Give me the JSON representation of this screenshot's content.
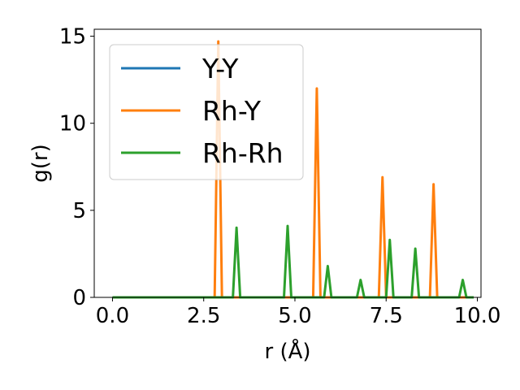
{
  "chart_data": {
    "type": "line",
    "title": "",
    "xlabel": "r (Å)",
    "ylabel": "g(r)",
    "xlim": [
      -0.5,
      10.1
    ],
    "ylim": [
      0,
      15.4
    ],
    "xticks": [
      0.0,
      2.5,
      5.0,
      7.5,
      10.0
    ],
    "xtick_labels": [
      "0.0",
      "2.5",
      "5.0",
      "7.5",
      "10.0"
    ],
    "yticks": [
      0,
      5,
      10,
      15
    ],
    "ytick_labels": [
      "0",
      "5",
      "10",
      "15"
    ],
    "grid": false,
    "legend_position": "top-left",
    "series": [
      {
        "name": "Y-Y",
        "color": "#1f77b4",
        "x": [
          0.0,
          9.9
        ],
        "y": [
          0,
          0
        ]
      },
      {
        "name": "Rh-Y",
        "color": "#ff7f0e",
        "x": [
          0.0,
          2.8,
          2.9,
          3.0,
          5.5,
          5.6,
          5.7,
          7.3,
          7.4,
          7.5,
          8.7,
          8.8,
          8.9,
          9.9
        ],
        "y": [
          0,
          0,
          14.7,
          0,
          0,
          12.0,
          0,
          0,
          6.9,
          0,
          0,
          6.5,
          0,
          0
        ]
      },
      {
        "name": "Rh-Rh",
        "color": "#2ca02c",
        "x": [
          0.0,
          3.3,
          3.4,
          3.5,
          4.7,
          4.8,
          4.9,
          5.8,
          5.9,
          6.0,
          6.7,
          6.8,
          6.9,
          7.5,
          7.6,
          7.7,
          8.2,
          8.3,
          8.4,
          9.5,
          9.6,
          9.7,
          9.9
        ],
        "y": [
          0,
          0,
          4.0,
          0,
          0,
          4.1,
          0,
          0,
          1.8,
          0,
          0,
          1.0,
          0,
          0,
          3.3,
          0,
          0,
          2.8,
          0,
          0,
          1.0,
          0,
          0
        ]
      }
    ]
  }
}
